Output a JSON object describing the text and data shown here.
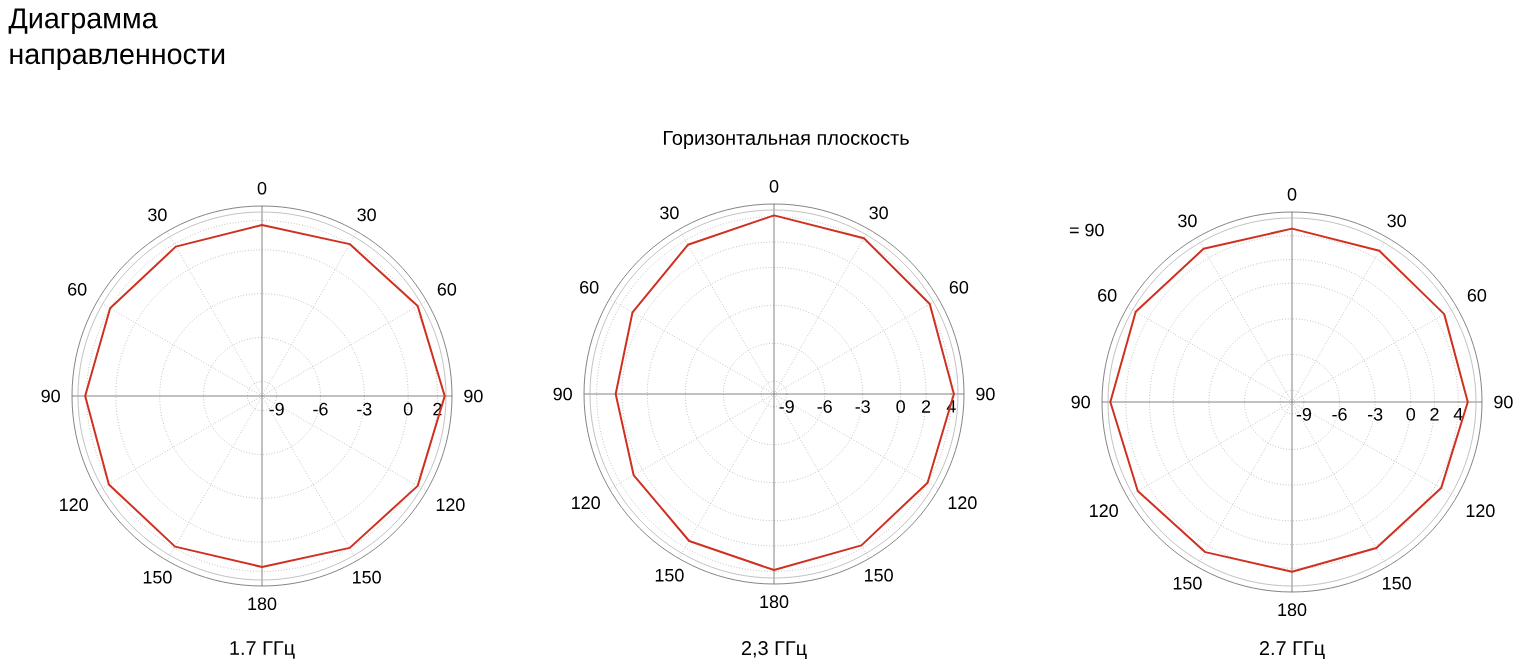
{
  "chart_data": [
    {
      "type": "radar",
      "title": "Диаграмма направленности",
      "xlabel": "1.7 ГГц",
      "categories": [
        "0",
        "30",
        "60",
        "90",
        "120",
        "150",
        "180",
        "150",
        "120",
        "90",
        "60",
        "30"
      ],
      "series": [
        {
          "color": "#d03020",
          "values": [
            1.7,
            2.0,
            2.3,
            2.5,
            2.3,
            2.0,
            1.7,
            1.9,
            2.1,
            2.1,
            2.0,
            1.8
          ]
        }
      ],
      "ylim": [
        -10,
        3
      ],
      "yticks": [
        -9,
        -6,
        -3,
        0,
        2
      ],
      "grid": true
    },
    {
      "type": "radar",
      "title": "Горизонтальная плоскость",
      "xlabel": "2,3 ГГц",
      "categories": [
        "0",
        "30",
        "60",
        "90",
        "120",
        "150",
        "180",
        "150",
        "120",
        "90",
        "60",
        "30"
      ],
      "series": [
        {
          "color": "#d03020",
          "values": [
            4.1,
            4.2,
            4.2,
            4.2,
            4.0,
            3.8,
            3.9,
            3.4,
            2.8,
            2.5,
            2.9,
            3.6
          ]
        }
      ],
      "ylim": [
        -10,
        5
      ],
      "yticks": [
        -9,
        -6,
        -3,
        0,
        2,
        4
      ],
      "grid": true
    },
    {
      "type": "radar",
      "xlabel": "2.7 ГГц",
      "annotations": [
        "= 90"
      ],
      "categories": [
        "0",
        "30",
        "60",
        "90",
        "120",
        "150",
        "180",
        "150",
        "120",
        "90",
        "60",
        "30"
      ],
      "series": [
        {
          "color": "#d03020",
          "values": [
            4.6,
            4.7,
            4.8,
            4.8,
            4.5,
            4.2,
            4.3,
            4.6,
            5.0,
            5.3,
            5.2,
            4.9
          ]
        }
      ],
      "ylim": [
        -10,
        6
      ],
      "yticks": [
        -9,
        -6,
        -3,
        0,
        2,
        4
      ],
      "grid": true
    }
  ]
}
